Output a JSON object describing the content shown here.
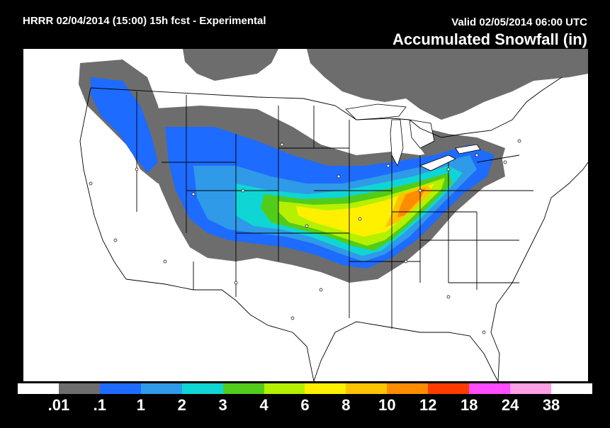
{
  "header": {
    "run_info": "HRRR 02/04/2014 (15:00) 15h fcst - Experimental",
    "valid_time": "Valid 02/05/2014 06:00 UTC",
    "title": "Accumulated Snowfall (in)"
  },
  "legend": {
    "colors": [
      "#ffffff",
      "#6d6d6d",
      "#1e6bff",
      "#2f9ae8",
      "#10d5d5",
      "#52cc1a",
      "#b4f000",
      "#fff000",
      "#ffc400",
      "#ff8c00",
      "#ff3c00",
      "#ff4cff",
      "#ff9fe6",
      "#ffffff"
    ],
    "labels": [
      ".01",
      ".1",
      "1",
      "2",
      "3",
      "4",
      "6",
      "8",
      "10",
      "12",
      "18",
      "24",
      "38"
    ]
  },
  "map": {
    "background": "#ffffff",
    "line_color": "#000000"
  }
}
